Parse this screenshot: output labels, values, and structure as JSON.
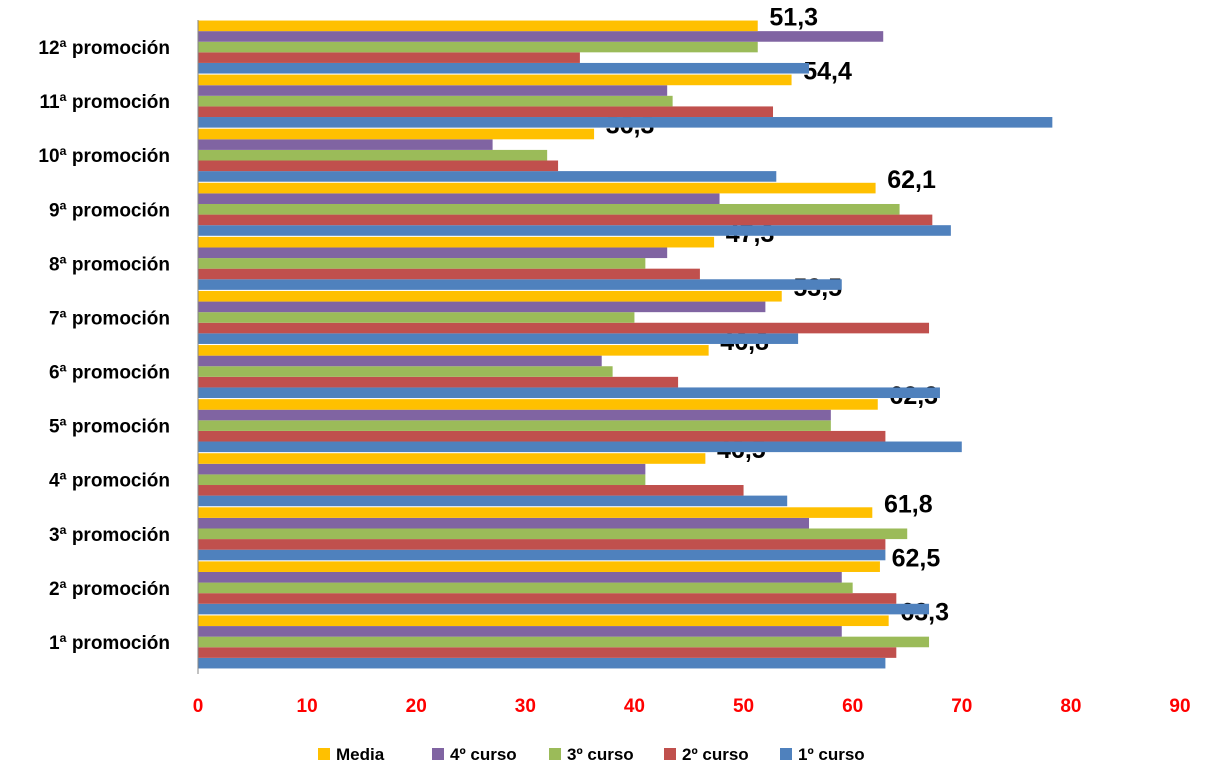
{
  "chart_data": {
    "type": "bar",
    "orientation": "horizontal",
    "title": "",
    "xlabel": "",
    "ylabel": "",
    "xlim": [
      0,
      90
    ],
    "x_ticks": [
      "0",
      "10",
      "20",
      "30",
      "40",
      "50",
      "60",
      "70",
      "80",
      "90"
    ],
    "tick_color": "#ff0000",
    "grid": false,
    "legend_position": "bottom",
    "categories": [
      "1ª promoción",
      "2ª promoción",
      "3ª promoción",
      "4ª promoción",
      "5ª promoción",
      "6ª promoción",
      "7ª promoción",
      "8ª promoción",
      "9ª promoción",
      "10ª promoción",
      "11ª promoción",
      "12ª promoción"
    ],
    "series": [
      {
        "name": "1º curso",
        "color": "#4f81bd",
        "values": [
          63,
          67,
          63,
          54,
          70,
          68,
          55,
          59,
          69,
          53,
          78.3,
          56
        ]
      },
      {
        "name": "2º curso",
        "color": "#c0504d",
        "values": [
          64,
          64,
          63,
          50,
          63,
          44,
          67,
          46,
          67.3,
          33,
          52.7,
          35
        ]
      },
      {
        "name": "3º curso",
        "color": "#9bbb59",
        "values": [
          67,
          60,
          65,
          41,
          58,
          38,
          40,
          41,
          64.3,
          32,
          43.5,
          51.3
        ]
      },
      {
        "name": "4º curso",
        "color": "#8064a2",
        "values": [
          59,
          59,
          56,
          41,
          58,
          37,
          52,
          43,
          47.8,
          27,
          43,
          62.8
        ]
      },
      {
        "name": "Media",
        "color": "#ffc000",
        "values": [
          63.3,
          62.5,
          61.8,
          46.5,
          62.3,
          46.8,
          53.5,
          47.3,
          62.1,
          36.3,
          54.4,
          51.3
        ]
      }
    ],
    "data_labels": [
      "63,3",
      "62,5",
      "61,8",
      "46,5",
      "62,3",
      "46,8",
      "53,5",
      "47,3",
      "62,1",
      "36,3",
      "54,4",
      "51,3"
    ],
    "legend_order": [
      "Media",
      "4º curso",
      "3º curso",
      "2º curso",
      "1º curso"
    ]
  }
}
